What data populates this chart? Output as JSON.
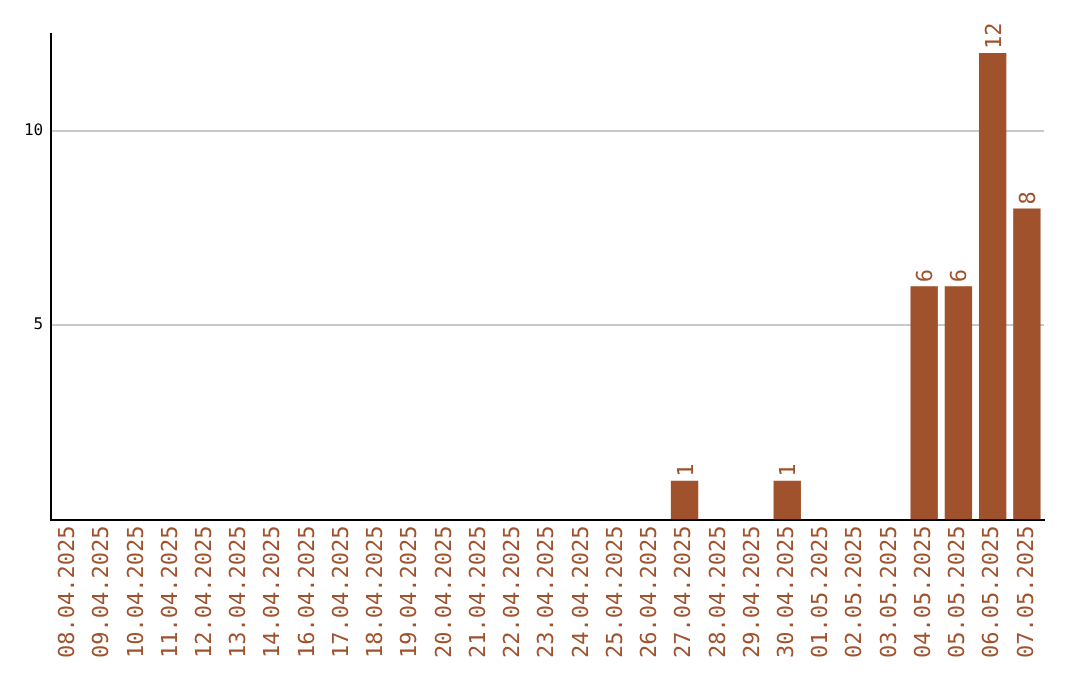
{
  "chart_data": {
    "type": "bar",
    "categories": [
      "08.04.2025",
      "09.04.2025",
      "10.04.2025",
      "11.04.2025",
      "12.04.2025",
      "13.04.2025",
      "14.04.2025",
      "16.04.2025",
      "17.04.2025",
      "18.04.2025",
      "19.04.2025",
      "20.04.2025",
      "21.04.2025",
      "22.04.2025",
      "23.04.2025",
      "24.04.2025",
      "25.04.2025",
      "26.04.2025",
      "27.04.2025",
      "28.04.2025",
      "29.04.2025",
      "30.04.2025",
      "01.05.2025",
      "02.05.2025",
      "03.05.2025",
      "04.05.2025",
      "05.05.2025",
      "06.05.2025",
      "07.05.2025"
    ],
    "values": [
      0,
      0,
      0,
      0,
      0,
      0,
      0,
      0,
      0,
      0,
      0,
      0,
      0,
      0,
      0,
      0,
      0,
      0,
      1,
      0,
      0,
      1,
      0,
      0,
      0,
      6,
      6,
      12,
      8
    ],
    "value_labels": [
      null,
      null,
      null,
      null,
      null,
      null,
      null,
      null,
      null,
      null,
      null,
      null,
      null,
      null,
      null,
      null,
      null,
      null,
      "1",
      null,
      null,
      "1",
      null,
      null,
      null,
      "6",
      "6",
      "12",
      "8"
    ],
    "color": "#a0522d",
    "ylim": [
      0,
      12.5
    ],
    "yticks": [
      5,
      10
    ],
    "grid": "y",
    "legend": false
  }
}
